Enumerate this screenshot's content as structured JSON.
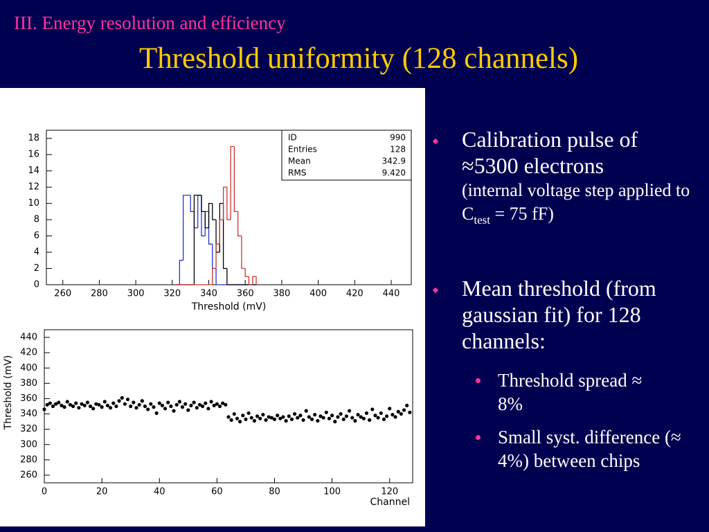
{
  "header": {
    "section": "III. Energy resolution and efficiency",
    "title": "Threshold uniformity (128 channels)"
  },
  "chart_data": [
    {
      "type": "histogram",
      "xlabel": "Threshold (mV)",
      "bins": [
        322,
        324,
        326,
        328,
        330,
        332,
        334,
        336,
        338,
        340,
        342,
        344,
        346,
        348,
        350,
        352,
        354,
        356,
        358,
        360,
        362,
        364,
        366
      ],
      "series": [
        {
          "color": "#2233cc",
          "values": [
            0,
            3,
            11,
            11,
            9,
            7,
            11,
            6,
            9,
            5,
            2,
            0,
            0,
            0,
            0,
            0,
            0,
            0,
            0,
            0,
            0,
            0
          ]
        },
        {
          "color": "#000000",
          "values": [
            0,
            0,
            0,
            0,
            0,
            11,
            11,
            9,
            7,
            10,
            8,
            4,
            10,
            2,
            0,
            0,
            0,
            0,
            0,
            0,
            0,
            0
          ]
        },
        {
          "color": "#cc3333",
          "values": [
            0,
            0,
            0,
            0,
            0,
            0,
            0,
            0,
            0,
            0,
            2,
            5,
            8,
            12,
            8,
            17,
            9,
            6,
            2,
            1,
            0,
            1
          ]
        }
      ],
      "xlim": [
        251,
        451
      ],
      "ylim": [
        0,
        19
      ],
      "xticks": [
        260,
        280,
        300,
        320,
        340,
        360,
        380,
        400,
        420,
        440
      ],
      "yticks": [
        0,
        2,
        4,
        6,
        8,
        10,
        12,
        14,
        16,
        18
      ],
      "stats": {
        "labels": [
          "ID",
          "Entries",
          "Mean",
          "RMS"
        ],
        "values": [
          "990",
          "128",
          "342.9",
          "9.420"
        ]
      }
    },
    {
      "type": "scatter",
      "xlabel": "Channel",
      "ylabel": "Threshold (mV)",
      "color": "#000000",
      "x": [
        0,
        1,
        2,
        3,
        4,
        5,
        6,
        7,
        8,
        9,
        10,
        11,
        12,
        13,
        14,
        15,
        16,
        17,
        18,
        19,
        20,
        21,
        22,
        23,
        24,
        25,
        26,
        27,
        28,
        29,
        30,
        31,
        32,
        33,
        34,
        35,
        36,
        37,
        38,
        39,
        40,
        41,
        42,
        43,
        44,
        45,
        46,
        47,
        48,
        49,
        50,
        51,
        52,
        53,
        54,
        55,
        56,
        57,
        58,
        59,
        60,
        61,
        62,
        63,
        64,
        65,
        66,
        67,
        68,
        69,
        70,
        71,
        72,
        73,
        74,
        75,
        76,
        77,
        78,
        79,
        80,
        81,
        82,
        83,
        84,
        85,
        86,
        87,
        88,
        89,
        90,
        91,
        92,
        93,
        94,
        95,
        96,
        97,
        98,
        99,
        100,
        101,
        102,
        103,
        104,
        105,
        106,
        107,
        108,
        109,
        110,
        111,
        112,
        113,
        114,
        115,
        116,
        117,
        118,
        119,
        120,
        121,
        122,
        123,
        124,
        125,
        126,
        127
      ],
      "values": [
        346,
        352,
        354,
        350,
        353,
        355,
        351,
        349,
        356,
        352,
        350,
        354,
        348,
        353,
        351,
        355,
        350,
        347,
        353,
        352,
        349,
        356,
        351,
        348,
        354,
        350,
        357,
        361,
        353,
        359,
        350,
        355,
        348,
        352,
        357,
        350,
        346,
        353,
        349,
        341,
        354,
        351,
        347,
        355,
        350,
        344,
        352,
        356,
        349,
        353,
        345,
        351,
        355,
        348,
        352,
        350,
        354,
        347,
        356,
        351,
        353,
        350,
        354,
        352,
        336,
        332,
        340,
        334,
        330,
        338,
        333,
        341,
        335,
        331,
        337,
        334,
        339,
        332,
        336,
        335,
        333,
        338,
        334,
        336,
        331,
        337,
        333,
        340,
        335,
        338,
        332,
        344,
        336,
        333,
        339,
        331,
        337,
        335,
        342,
        334,
        338,
        330,
        336,
        340,
        333,
        337,
        344,
        335,
        331,
        339,
        336,
        334,
        341,
        332,
        346,
        338,
        335,
        341,
        333,
        337,
        347,
        339,
        336,
        343,
        340,
        345,
        351,
        342
      ],
      "xlim": [
        0,
        128
      ],
      "ylim": [
        250,
        450
      ],
      "xticks": [
        0,
        20,
        40,
        60,
        80,
        100,
        120
      ],
      "yticks": [
        260,
        280,
        300,
        320,
        340,
        360,
        380,
        400,
        420,
        440
      ]
    }
  ],
  "bullets": [
    {
      "text": "Calibration pulse of ≈5300 electrons",
      "note": {
        "text": "(internal voltage step applied to C",
        "sub": "test",
        "after": " = 75 fF)"
      }
    },
    {
      "text": "Mean threshold (from gaussian fit) for 128 channels:",
      "items": [
        "Threshold spread ≈ 8%",
        "Small syst. difference (≈ 4%) between chips"
      ]
    }
  ]
}
